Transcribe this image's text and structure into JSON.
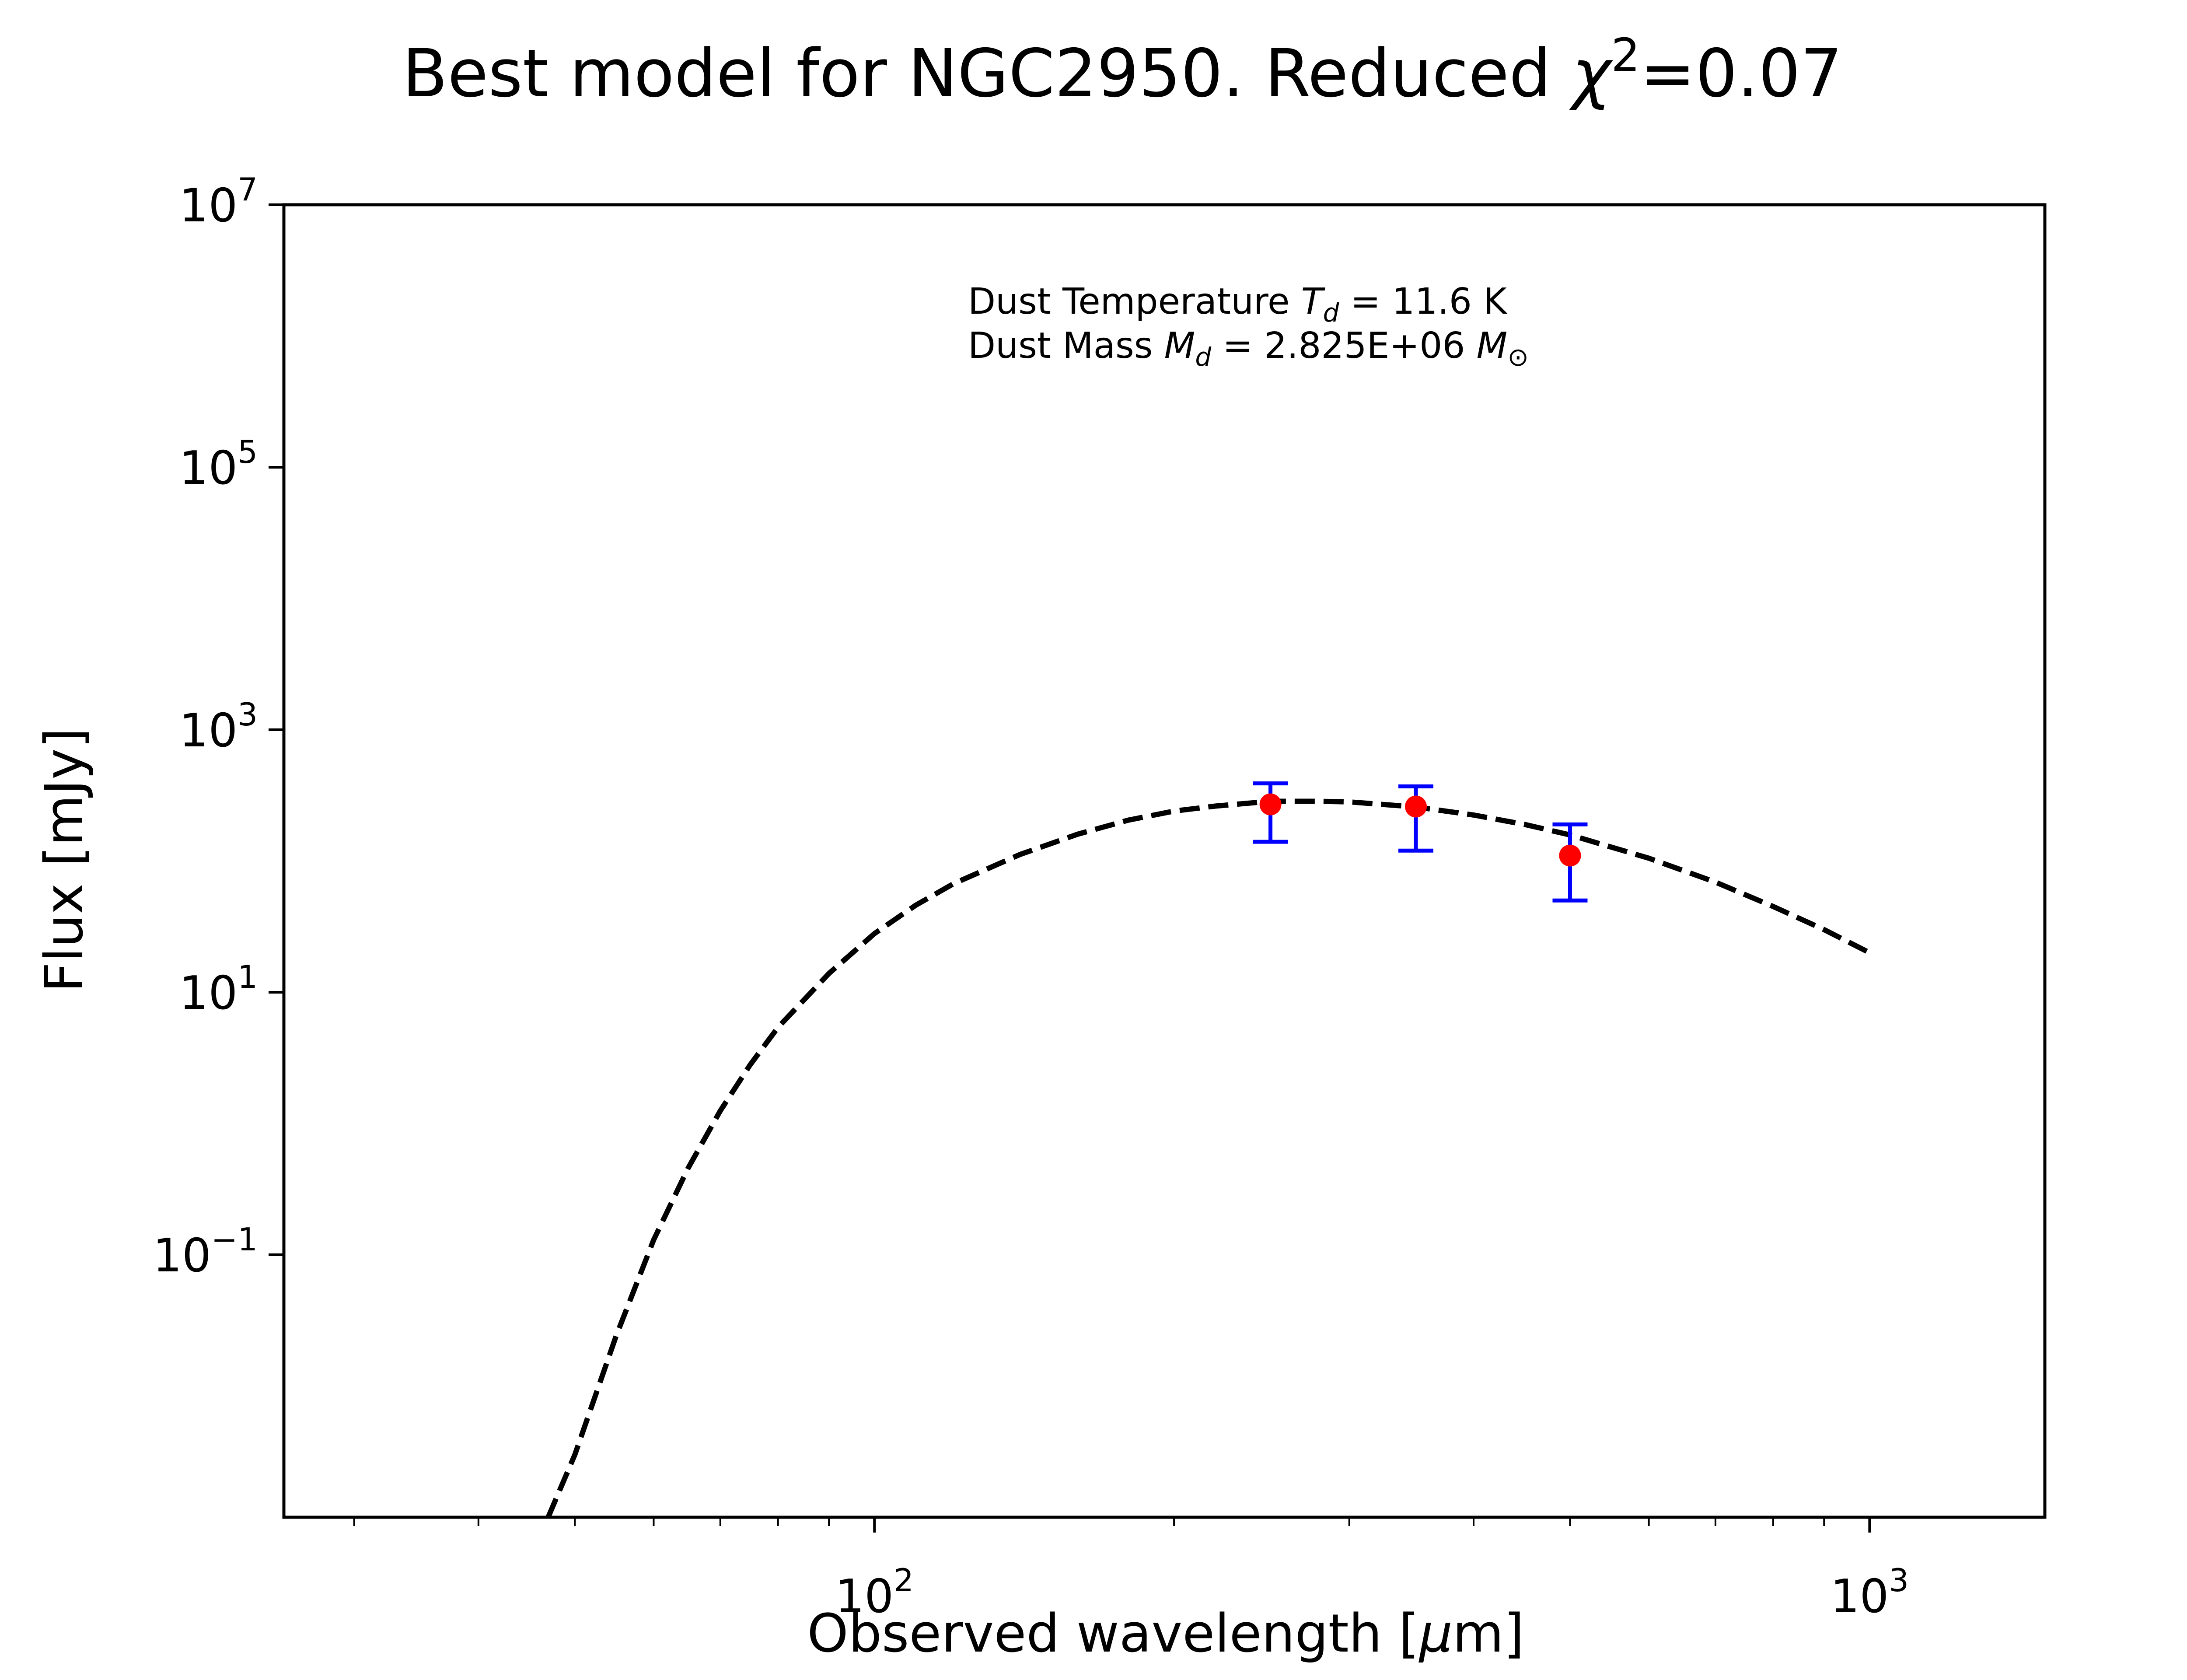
{
  "chart_data": {
    "type": "line",
    "title": {
      "prefix": "Best model for NGC2950. Reduced ",
      "symbol": "χ",
      "power": "2",
      "suffix": "=0.07"
    },
    "xlabel": {
      "prefix": "Observed wavelength [",
      "symbol": "μ",
      "suffix": "m]"
    },
    "ylabel": "Flux [mJy]",
    "x_scale": "log",
    "y_scale": "log",
    "xlim": [
      25.5,
      1500
    ],
    "ylim": [
      0.001,
      10000000
    ],
    "x_ticks": [
      {
        "value": 100,
        "base": "10",
        "exp": "2"
      },
      {
        "value": 1000,
        "base": "10",
        "exp": "3"
      }
    ],
    "y_ticks": [
      {
        "value": 0.1,
        "base": "10",
        "exp": "−1"
      },
      {
        "value": 10,
        "base": "10",
        "exp": "1"
      },
      {
        "value": 1000,
        "base": "10",
        "exp": "3"
      },
      {
        "value": 100000,
        "base": "10",
        "exp": "5"
      },
      {
        "value": 10000000,
        "base": "10",
        "exp": "7"
      }
    ],
    "grid": false,
    "model": {
      "style": "dashed",
      "color": "#000000",
      "x": [
        47,
        50,
        55,
        60,
        65,
        70,
        75,
        80,
        90,
        100,
        110,
        120,
        140,
        160,
        180,
        200,
        220,
        250,
        280,
        300,
        350,
        400,
        450,
        500,
        600,
        700,
        800,
        900,
        1000
      ],
      "y": [
        0.001,
        0.003,
        0.024,
        0.13,
        0.46,
        1.25,
        2.8,
        5.4,
        13.9,
        28,
        46,
        67,
        112,
        160,
        205,
        240,
        262,
        285,
        285,
        282,
        258,
        224,
        190,
        158,
        105,
        69,
        45,
        30,
        20
      ]
    },
    "points": {
      "color": "#ff0000",
      "errorbar_color": "#0000ff",
      "x": [
        250,
        350,
        500
      ],
      "y": [
        270,
        260,
        110
      ],
      "y_err_low": [
        140,
        120,
        50
      ],
      "y_err_high": [
        390,
        370,
        190
      ]
    },
    "annotations": {
      "line1": {
        "prefix": "Dust Temperature ",
        "symbol": "T",
        "subscript": "d",
        "suffix": " = 11.6 K"
      },
      "line2": {
        "prefix": "Dust Mass ",
        "symbol": "M",
        "subscript": "d",
        "middle": " = 2.825E+06 ",
        "symbol2": "M",
        "subscript2": "⊙"
      }
    }
  }
}
